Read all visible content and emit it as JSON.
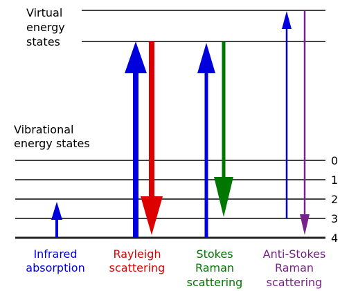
{
  "labels": {
    "virtual_line1": "Virtual",
    "virtual_line2": "energy",
    "virtual_line3": "states",
    "vibrational_line1": "Vibrational",
    "vibrational_line2": "energy states"
  },
  "levels": [
    "4",
    "3",
    "2",
    "1",
    "0"
  ],
  "processes": {
    "infrared": {
      "line1": "Infrared",
      "line2": "absorption",
      "color": "#0000dd"
    },
    "rayleigh": {
      "line1": "Rayleigh",
      "line2": "scattering",
      "color": "#dd0000",
      "up_color": "#0000dd"
    },
    "stokes": {
      "line1": "Stokes",
      "line2": "Raman",
      "line3": "scattering",
      "color": "#007700",
      "up_color": "#0000dd"
    },
    "antistokes": {
      "line1": "Anti-Stokes",
      "line2": "Raman",
      "line3": "scattering",
      "color": "#772288",
      "up_color": "#0000dd"
    }
  }
}
